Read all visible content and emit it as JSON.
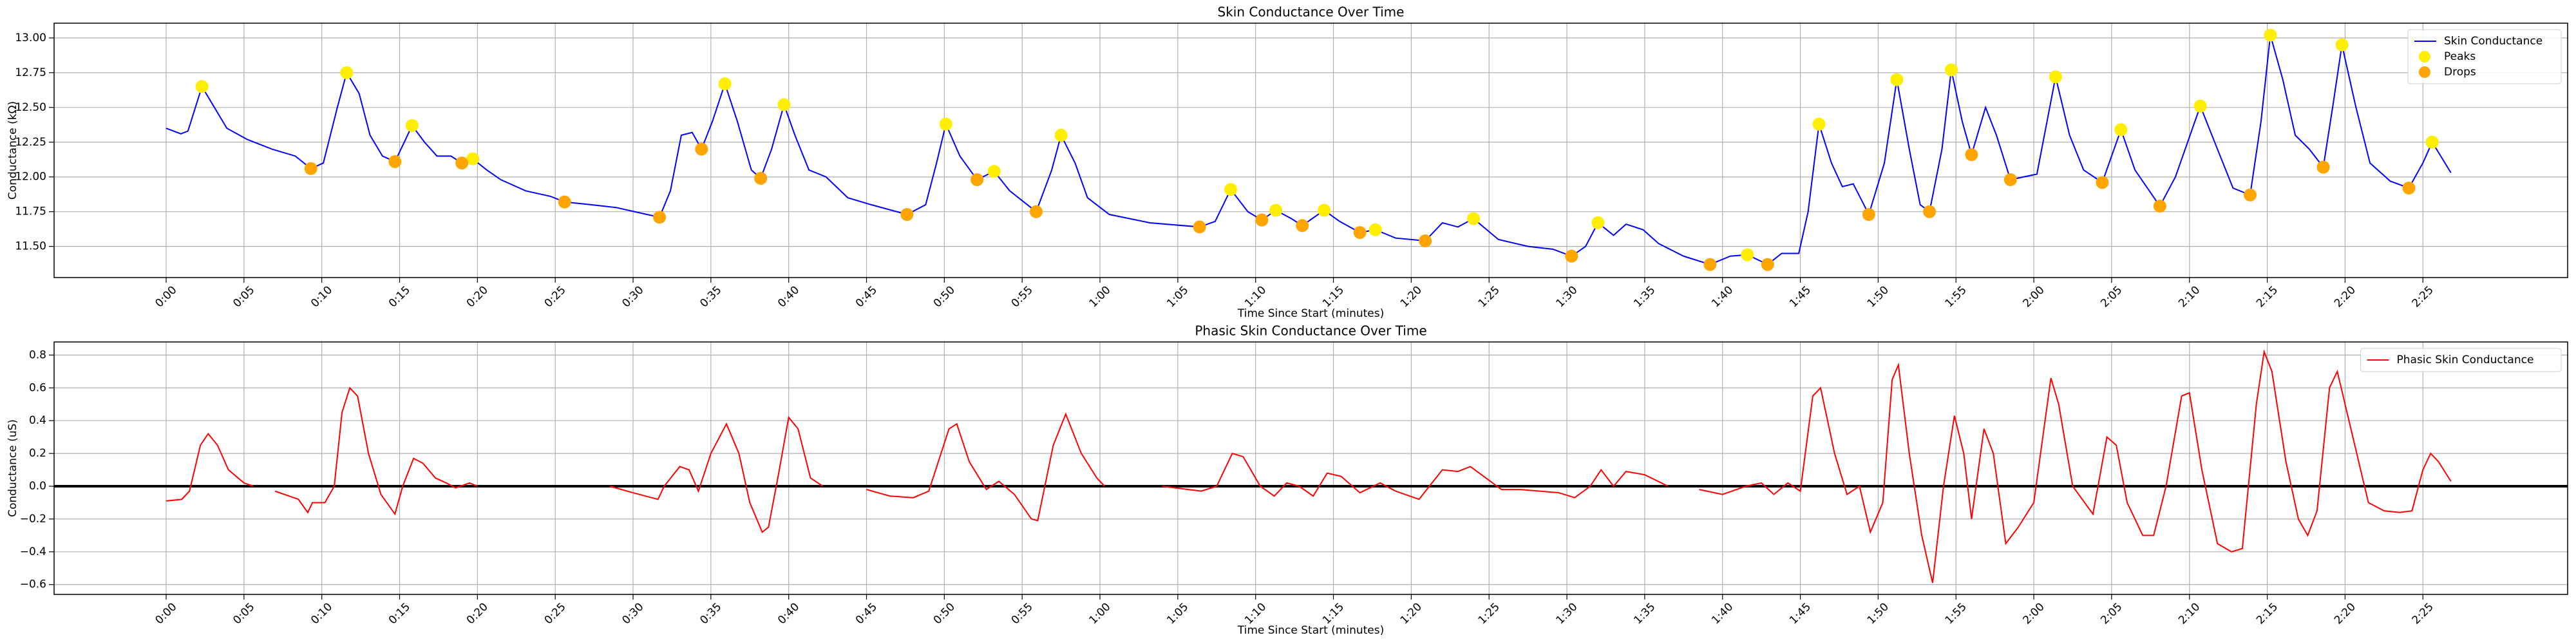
{
  "chart_data": [
    {
      "type": "line",
      "title": "Skin Conductance Over Time",
      "xlabel": "Time Since Start (minutes)",
      "ylabel": "Conductance (kΩ)",
      "xlim": [
        -7.2,
        154.3
      ],
      "ylim": [
        11.276,
        13.106
      ],
      "grid": true,
      "legend": "upper right",
      "xticks": [
        {
          "value": 0,
          "label": "0:00"
        },
        {
          "value": 5,
          "label": "0:05"
        },
        {
          "value": 10,
          "label": "0:10"
        },
        {
          "value": 15,
          "label": "0:15"
        },
        {
          "value": 20,
          "label": "0:20"
        },
        {
          "value": 25,
          "label": "0:25"
        },
        {
          "value": 30,
          "label": "0:30"
        },
        {
          "value": 35,
          "label": "0:35"
        },
        {
          "value": 40,
          "label": "0:40"
        },
        {
          "value": 45,
          "label": "0:45"
        },
        {
          "value": 50,
          "label": "0:50"
        },
        {
          "value": 55,
          "label": "0:55"
        },
        {
          "value": 60,
          "label": "1:00"
        },
        {
          "value": 65,
          "label": "1:05"
        },
        {
          "value": 70,
          "label": "1:10"
        },
        {
          "value": 75,
          "label": "1:15"
        },
        {
          "value": 80,
          "label": "1:20"
        },
        {
          "value": 85,
          "label": "1:25"
        },
        {
          "value": 90,
          "label": "1:30"
        },
        {
          "value": 95,
          "label": "1:35"
        },
        {
          "value": 100,
          "label": "1:40"
        },
        {
          "value": 105,
          "label": "1:45"
        },
        {
          "value": 110,
          "label": "1:50"
        },
        {
          "value": 115,
          "label": "1:55"
        },
        {
          "value": 120,
          "label": "2:00"
        },
        {
          "value": 125,
          "label": "2:05"
        },
        {
          "value": 130,
          "label": "2:10"
        },
        {
          "value": 135,
          "label": "2:15"
        },
        {
          "value": 140,
          "label": "2:20"
        },
        {
          "value": 145,
          "label": "2:25"
        }
      ],
      "yticks": [
        {
          "value": 11.5,
          "label": "11.50"
        },
        {
          "value": 11.75,
          "label": "11.75"
        },
        {
          "value": 12,
          "label": "12.00"
        },
        {
          "value": 12.25,
          "label": "12.25"
        },
        {
          "value": 12.5,
          "label": "12.50"
        },
        {
          "value": 12.75,
          "label": "12.75"
        },
        {
          "value": 13,
          "label": "13.00"
        }
      ],
      "series": [
        {
          "name": "Skin Conductance",
          "color": "#0000ff",
          "marker": "line",
          "x": [
            0,
            0.95,
            1.4,
            2.3,
            3.1,
            3.9,
            5.2,
            6.8,
            8.3,
            9.3,
            10.1,
            11,
            11.6,
            12.4,
            13.1,
            13.9,
            14.7,
            15.3,
            15.8,
            16.6,
            17.4,
            18.3,
            19,
            19.7,
            20.6,
            21.5,
            23.1,
            24.7,
            25.6,
            27.3,
            28.9,
            30.5,
            31.7,
            32.4,
            33.1,
            33.8,
            34.4,
            35.1,
            35.9,
            36.7,
            37.6,
            38.2,
            38.9,
            39.7,
            40.4,
            41.3,
            42.4,
            43.8,
            45.3,
            47.6,
            48.8,
            49.5,
            50.1,
            51,
            52.1,
            53.2,
            54.2,
            55.9,
            56.9,
            57.5,
            58.4,
            59.2,
            60.6,
            63.2,
            66.4,
            67.4,
            68.4,
            69.5,
            70.4,
            71.3,
            72.3,
            73,
            74.4,
            75.4,
            76.7,
            77.7,
            79,
            80.9,
            82,
            83,
            84,
            85.6,
            87.5,
            89.1,
            90.3,
            91.2,
            92,
            93,
            93.8,
            94.9,
            95.9,
            97.5,
            99.2,
            100.5,
            101.6,
            102.9,
            103.8,
            104.9,
            105.5,
            106.2,
            107,
            107.7,
            108.4,
            109.4,
            110.4,
            111.2,
            112,
            112.7,
            113.3,
            114.1,
            114.7,
            115.4,
            116,
            116.9,
            117.6,
            118.5,
            120.2,
            121.4,
            122.3,
            123.2,
            124.4,
            125.6,
            126.5,
            128.1,
            129.1,
            130.7,
            131.8,
            132.8,
            133.9,
            134.6,
            135.2,
            136,
            136.8,
            137.7,
            138.6,
            139.2,
            139.8,
            140.7,
            141.6,
            142.9,
            144.1,
            145,
            145.6,
            146.8
          ],
          "values": [
            12.35,
            12.31,
            12.33,
            12.65,
            12.5,
            12.35,
            12.27,
            12.2,
            12.15,
            12.06,
            12.1,
            12.5,
            12.75,
            12.6,
            12.3,
            12.15,
            12.11,
            12.25,
            12.37,
            12.25,
            12.15,
            12.15,
            12.1,
            12.13,
            12.05,
            11.98,
            11.9,
            11.86,
            11.82,
            11.8,
            11.78,
            11.74,
            11.71,
            11.9,
            12.3,
            12.32,
            12.2,
            12.4,
            12.67,
            12.4,
            12.05,
            11.99,
            12.2,
            12.52,
            12.3,
            12.05,
            12.0,
            11.85,
            11.8,
            11.73,
            11.8,
            12.1,
            12.38,
            12.15,
            11.98,
            12.04,
            11.9,
            11.75,
            12.05,
            12.3,
            12.1,
            11.85,
            11.73,
            11.67,
            11.64,
            11.68,
            11.91,
            11.75,
            11.69,
            11.76,
            11.7,
            11.65,
            11.76,
            11.68,
            11.6,
            11.62,
            11.56,
            11.54,
            11.67,
            11.64,
            11.7,
            11.55,
            11.5,
            11.48,
            11.43,
            11.5,
            11.67,
            11.58,
            11.66,
            11.62,
            11.52,
            11.43,
            11.37,
            11.43,
            11.44,
            11.37,
            11.45,
            11.45,
            11.75,
            12.38,
            12.1,
            11.93,
            11.95,
            11.73,
            12.1,
            12.7,
            12.2,
            11.8,
            11.75,
            12.2,
            12.77,
            12.4,
            12.16,
            12.5,
            12.3,
            11.98,
            12.02,
            12.72,
            12.3,
            12.05,
            11.96,
            12.34,
            12.05,
            11.79,
            12.0,
            12.51,
            12.2,
            11.92,
            11.87,
            12.4,
            13.02,
            12.7,
            12.3,
            12.2,
            12.07,
            12.5,
            12.95,
            12.5,
            12.1,
            11.97,
            11.92,
            12.1,
            12.25,
            12.03
          ]
        },
        {
          "name": "Peaks",
          "color": "#ffee00",
          "marker": "dot",
          "x": [
            2.3,
            11.6,
            15.8,
            19.7,
            35.9,
            39.7,
            50.1,
            53.2,
            57.5,
            68.4,
            71.3,
            74.4,
            77.7,
            84,
            92,
            101.6,
            106.2,
            111.2,
            114.7,
            121.4,
            125.6,
            130.7,
            135.2,
            139.8,
            145.6
          ],
          "values": [
            12.65,
            12.75,
            12.37,
            12.13,
            12.67,
            12.52,
            12.38,
            12.04,
            12.3,
            11.91,
            11.76,
            11.76,
            11.62,
            11.7,
            11.67,
            11.44,
            12.38,
            12.7,
            12.77,
            12.72,
            12.34,
            12.51,
            13.02,
            12.95,
            12.25
          ]
        },
        {
          "name": "Drops",
          "color": "#ffa500",
          "marker": "dot",
          "x": [
            9.3,
            14.7,
            19,
            25.6,
            31.7,
            34.4,
            38.2,
            47.6,
            52.1,
            55.9,
            66.4,
            70.4,
            73,
            76.7,
            80.9,
            90.3,
            99.2,
            102.9,
            109.4,
            113.3,
            116,
            118.5,
            124.4,
            128.1,
            133.9,
            138.6,
            144.1
          ],
          "values": [
            12.06,
            12.11,
            12.1,
            11.82,
            11.71,
            12.2,
            11.99,
            11.73,
            11.98,
            11.75,
            11.64,
            11.69,
            11.65,
            11.6,
            11.54,
            11.43,
            11.37,
            11.37,
            11.73,
            11.75,
            12.16,
            11.98,
            11.96,
            11.79,
            11.87,
            12.07,
            11.92
          ]
        }
      ]
    },
    {
      "type": "line",
      "title": "Phasic Skin Conductance Over Time",
      "xlabel": "Time Since Start (minutes)",
      "ylabel": "Conductance (uS)",
      "xlim": [
        -7.2,
        154.3
      ],
      "ylim": [
        -0.66,
        0.88
      ],
      "grid": true,
      "legend": "upper right",
      "hline": 0,
      "xticks": [
        {
          "value": 0,
          "label": "0:00"
        },
        {
          "value": 5,
          "label": "0:05"
        },
        {
          "value": 10,
          "label": "0:10"
        },
        {
          "value": 15,
          "label": "0:15"
        },
        {
          "value": 20,
          "label": "0:20"
        },
        {
          "value": 25,
          "label": "0:25"
        },
        {
          "value": 30,
          "label": "0:30"
        },
        {
          "value": 35,
          "label": "0:35"
        },
        {
          "value": 40,
          "label": "0:40"
        },
        {
          "value": 45,
          "label": "0:45"
        },
        {
          "value": 50,
          "label": "0:50"
        },
        {
          "value": 55,
          "label": "0:55"
        },
        {
          "value": 60,
          "label": "1:00"
        },
        {
          "value": 65,
          "label": "1:05"
        },
        {
          "value": 70,
          "label": "1:10"
        },
        {
          "value": 75,
          "label": "1:15"
        },
        {
          "value": 80,
          "label": "1:20"
        },
        {
          "value": 85,
          "label": "1:25"
        },
        {
          "value": 90,
          "label": "1:30"
        },
        {
          "value": 95,
          "label": "1:35"
        },
        {
          "value": 100,
          "label": "1:40"
        },
        {
          "value": 105,
          "label": "1:45"
        },
        {
          "value": 110,
          "label": "1:50"
        },
        {
          "value": 115,
          "label": "1:55"
        },
        {
          "value": 120,
          "label": "2:00"
        },
        {
          "value": 125,
          "label": "2:05"
        },
        {
          "value": 130,
          "label": "2:10"
        },
        {
          "value": 135,
          "label": "2:15"
        },
        {
          "value": 140,
          "label": "2:20"
        },
        {
          "value": 145,
          "label": "2:25"
        }
      ],
      "yticks": [
        {
          "value": -0.6,
          "label": "−0.6"
        },
        {
          "value": -0.4,
          "label": "−0.4"
        },
        {
          "value": -0.2,
          "label": "−0.2"
        },
        {
          "value": 0,
          "label": "0.0"
        },
        {
          "value": 0.2,
          "label": "0.2"
        },
        {
          "value": 0.4,
          "label": "0.4"
        },
        {
          "value": 0.6,
          "label": "0.6"
        },
        {
          "value": 0.8,
          "label": "0.8"
        }
      ],
      "series": [
        {
          "name": "Phasic Skin Conductance",
          "color": "#ff0000",
          "marker": "line",
          "x": [
            0,
            1,
            1.5,
            2.2,
            2.7,
            3.3,
            4,
            5,
            5.6,
            6,
            7,
            8.5,
            9.1,
            9.4,
            10.2,
            10.8,
            11.3,
            11.8,
            12.3,
            13,
            13.8,
            14.7,
            15.2,
            15.9,
            16.5,
            17.3,
            18,
            18.6,
            19.5,
            20,
            24,
            28.5,
            30,
            31.6,
            32,
            33,
            33.6,
            34.2,
            35,
            36,
            36.8,
            37.5,
            38.3,
            38.7,
            39.3,
            40,
            40.6,
            41.4,
            42.2,
            43.5,
            45,
            46.5,
            48,
            49,
            50.3,
            50.8,
            51.6,
            52.7,
            53.5,
            54.5,
            55.6,
            56,
            57,
            57.8,
            58.8,
            59.8,
            60.3,
            62,
            64,
            66.5,
            67.5,
            68.5,
            69.2,
            70.3,
            71.2,
            72,
            72.8,
            73.7,
            74.6,
            75.5,
            76.7,
            78,
            79,
            80.5,
            82,
            83,
            83.8,
            84.8,
            85.8,
            87,
            89.5,
            90.5,
            91.5,
            92.2,
            93,
            93.8,
            95,
            96.5,
            97.5,
            98.5,
            100,
            101.5,
            102.5,
            103.3,
            104.2,
            105,
            105.8,
            106.3,
            107.2,
            108,
            108.8,
            109.5,
            110.3,
            110.9,
            111.3,
            112,
            112.8,
            113.5,
            114.2,
            114.9,
            115.5,
            116,
            116.8,
            117.4,
            118.2,
            119,
            120,
            121.1,
            121.6,
            122.5,
            123.8,
            124.7,
            125.3,
            126,
            127,
            127.7,
            128.5,
            129.5,
            130,
            130.8,
            131.8,
            132.7,
            133.4,
            134.3,
            134.8,
            135.3,
            136.2,
            137,
            137.6,
            138.2,
            139,
            139.5,
            140.5,
            141.5,
            142.5,
            143.5,
            144.3,
            145,
            145.5,
            146,
            146.8
          ],
          "values": [
            -0.09,
            -0.08,
            -0.03,
            0.25,
            0.32,
            0.25,
            0.1,
            0.02,
            0.0,
            null,
            -0.03,
            -0.08,
            -0.16,
            -0.1,
            -0.1,
            0.0,
            0.45,
            0.6,
            0.55,
            0.2,
            -0.05,
            -0.17,
            0.0,
            0.17,
            0.14,
            0.05,
            0.02,
            -0.01,
            0.02,
            0.0,
            null,
            0.0,
            -0.04,
            -0.08,
            0.0,
            0.12,
            0.1,
            -0.03,
            0.2,
            0.38,
            0.2,
            -0.1,
            -0.28,
            -0.25,
            0.05,
            0.42,
            0.35,
            0.05,
            0.0,
            null,
            -0.02,
            -0.06,
            -0.07,
            -0.03,
            0.35,
            0.38,
            0.15,
            -0.02,
            0.03,
            -0.05,
            -0.2,
            -0.21,
            0.25,
            0.44,
            0.2,
            0.05,
            0.0,
            null,
            0.0,
            -0.03,
            0.0,
            0.2,
            0.18,
            0.0,
            -0.06,
            0.02,
            0.0,
            -0.06,
            0.08,
            0.06,
            -0.04,
            0.02,
            -0.03,
            -0.08,
            0.1,
            0.09,
            0.12,
            0.05,
            -0.02,
            -0.02,
            -0.04,
            -0.07,
            0.0,
            0.1,
            0.0,
            0.09,
            0.07,
            0.0,
            null,
            -0.02,
            -0.05,
            0.0,
            0.02,
            -0.05,
            0.02,
            -0.03,
            0.55,
            0.6,
            0.2,
            -0.05,
            0.0,
            -0.28,
            -0.1,
            0.65,
            0.74,
            0.2,
            -0.3,
            -0.59,
            0.0,
            0.43,
            0.2,
            -0.2,
            0.35,
            0.2,
            -0.35,
            -0.25,
            -0.1,
            0.66,
            0.5,
            0.0,
            -0.17,
            0.3,
            0.25,
            -0.1,
            -0.3,
            -0.3,
            0.0,
            0.55,
            0.57,
            0.1,
            -0.35,
            -0.4,
            -0.38,
            0.5,
            0.82,
            0.7,
            0.15,
            -0.2,
            -0.3,
            -0.15,
            0.6,
            0.7,
            0.3,
            -0.1,
            -0.15,
            -0.16,
            -0.15,
            0.1,
            0.2,
            0.15,
            0.03
          ]
        }
      ]
    }
  ]
}
